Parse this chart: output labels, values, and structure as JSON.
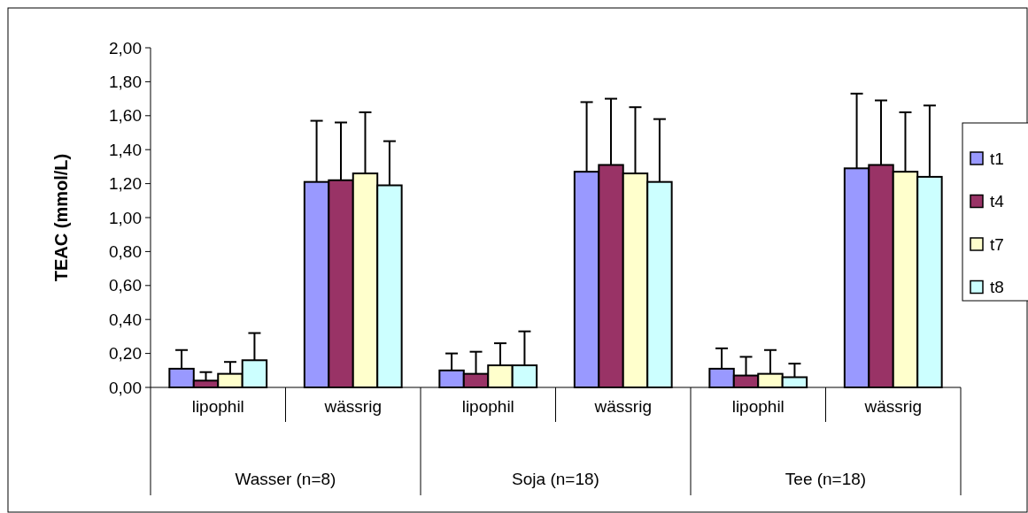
{
  "chart_data": {
    "type": "bar",
    "ylabel": "TEAC (mmol/L)",
    "categories": [
      "lipophil",
      "wässrig",
      "lipophil",
      "wässrig",
      "lipophil",
      "wässrig"
    ],
    "annotations": [
      "Wasser (n=8)",
      "Soja (n=18)",
      "Tee (n=18)"
    ],
    "series": [
      {
        "name": "t1",
        "color": "#9999ff",
        "values": [
          0.11,
          1.21,
          0.1,
          1.27,
          0.11,
          1.29
        ],
        "errors": [
          [
            0.11,
            0.22
          ],
          [
            1.21,
            1.57
          ],
          [
            0.1,
            0.2
          ],
          [
            1.27,
            1.68
          ],
          [
            0.11,
            0.23
          ],
          [
            1.29,
            1.73
          ]
        ]
      },
      {
        "name": "t4",
        "color": "#993366",
        "values": [
          0.04,
          1.22,
          0.08,
          1.31,
          0.07,
          1.31
        ],
        "errors": [
          [
            0.04,
            0.09
          ],
          [
            1.22,
            1.56
          ],
          [
            0.08,
            0.21
          ],
          [
            1.31,
            1.7
          ],
          [
            0.07,
            0.18
          ],
          [
            1.31,
            1.69
          ]
        ]
      },
      {
        "name": "t7",
        "color": "#ffffcc",
        "values": [
          0.08,
          1.26,
          0.13,
          1.26,
          0.08,
          1.27
        ],
        "errors": [
          [
            0.08,
            0.15
          ],
          [
            1.26,
            1.62
          ],
          [
            0.13,
            0.26
          ],
          [
            1.26,
            1.65
          ],
          [
            0.08,
            0.22
          ],
          [
            1.27,
            1.62
          ]
        ]
      },
      {
        "name": "t8",
        "color": "#ccffff",
        "values": [
          0.16,
          1.19,
          0.13,
          1.21,
          0.06,
          1.24
        ],
        "errors": [
          [
            0.16,
            0.32
          ],
          [
            1.19,
            1.45
          ],
          [
            0.13,
            0.33
          ],
          [
            1.21,
            1.58
          ],
          [
            0.06,
            0.14
          ],
          [
            1.24,
            1.66
          ]
        ]
      }
    ],
    "ylim": [
      0,
      2
    ],
    "yticks": [
      {
        "value": 0,
        "label": "0,00"
      },
      {
        "value": 0.2,
        "label": "0,20"
      },
      {
        "value": 0.4,
        "label": "0,40"
      },
      {
        "value": 0.6,
        "label": "0,60"
      },
      {
        "value": 0.8,
        "label": "0,80"
      },
      {
        "value": 1,
        "label": "1,00"
      },
      {
        "value": 1.2,
        "label": "1,20"
      },
      {
        "value": 1.4,
        "label": "1,40"
      },
      {
        "value": 1.6,
        "label": "1,60"
      },
      {
        "value": 1.8,
        "label": "1,80"
      },
      {
        "value": 2,
        "label": "2,00"
      }
    ],
    "legend": "right",
    "grid": false
  }
}
